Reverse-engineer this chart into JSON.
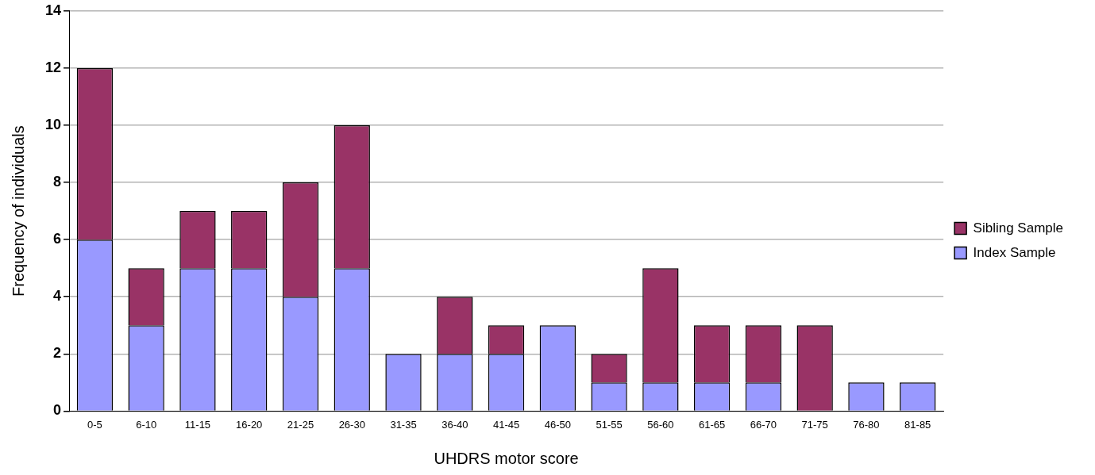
{
  "chart_data": {
    "type": "bar",
    "stacked": true,
    "xlabel": "UHDRS motor score",
    "ylabel": "Frequency of individuals",
    "categories": [
      "0-5",
      "6-10",
      "11-15",
      "16-20",
      "21-25",
      "26-30",
      "31-35",
      "36-40",
      "41-45",
      "46-50",
      "51-55",
      "56-60",
      "61-65",
      "66-70",
      "71-75",
      "76-80",
      "81-85"
    ],
    "series": [
      {
        "name": "Index Sample",
        "color": "#9999ff",
        "values": [
          6,
          3,
          5,
          5,
          4,
          5,
          2,
          2,
          2,
          3,
          1,
          1,
          1,
          1,
          0,
          1,
          1
        ]
      },
      {
        "name": "Sibling Sample",
        "color": "#993366",
        "values": [
          6,
          2,
          2,
          2,
          4,
          5,
          0,
          2,
          1,
          0,
          1,
          4,
          2,
          2,
          3,
          0,
          0
        ]
      }
    ],
    "ylim": [
      0,
      14
    ],
    "yticks": [
      0,
      2,
      4,
      6,
      8,
      10,
      12,
      14
    ],
    "grid": "y",
    "legend": "right"
  }
}
